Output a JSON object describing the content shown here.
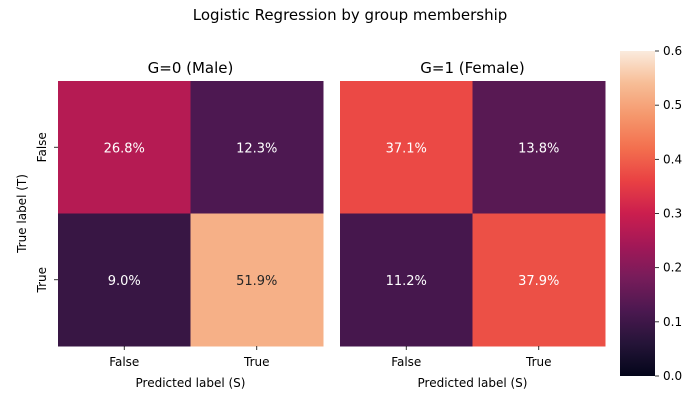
{
  "chart_data": {
    "type": "heatmap",
    "title": "Logistic Regression by group membership",
    "colormap": "rocket",
    "vmin": 0.0,
    "vmax": 0.6,
    "colorbar_ticks": [
      "0.0",
      "0.1",
      "0.2",
      "0.3",
      "0.4",
      "0.5",
      "0.6"
    ],
    "colorbar_tick_values": [
      0.0,
      0.1,
      0.2,
      0.3,
      0.4,
      0.5,
      0.6
    ],
    "panels": [
      {
        "title": "G=0 (Male)",
        "xlabel": "Predicted label (S)",
        "ylabel": "True label (T)",
        "x_categories": [
          "False",
          "True"
        ],
        "y_categories": [
          "False",
          "True"
        ],
        "values": [
          [
            0.268,
            0.123
          ],
          [
            0.09,
            0.519
          ]
        ],
        "labels": [
          [
            "26.8%",
            "12.3%"
          ],
          [
            "9.0%",
            "51.9%"
          ]
        ]
      },
      {
        "title": "G=1 (Female)",
        "xlabel": "Predicted label (S)",
        "ylabel": "",
        "x_categories": [
          "False",
          "True"
        ],
        "y_categories": [
          "False",
          "True"
        ],
        "values": [
          [
            0.371,
            0.138
          ],
          [
            0.112,
            0.379
          ]
        ],
        "labels": [
          [
            "37.1%",
            "13.8%"
          ],
          [
            "11.2%",
            "37.9%"
          ]
        ]
      }
    ]
  }
}
